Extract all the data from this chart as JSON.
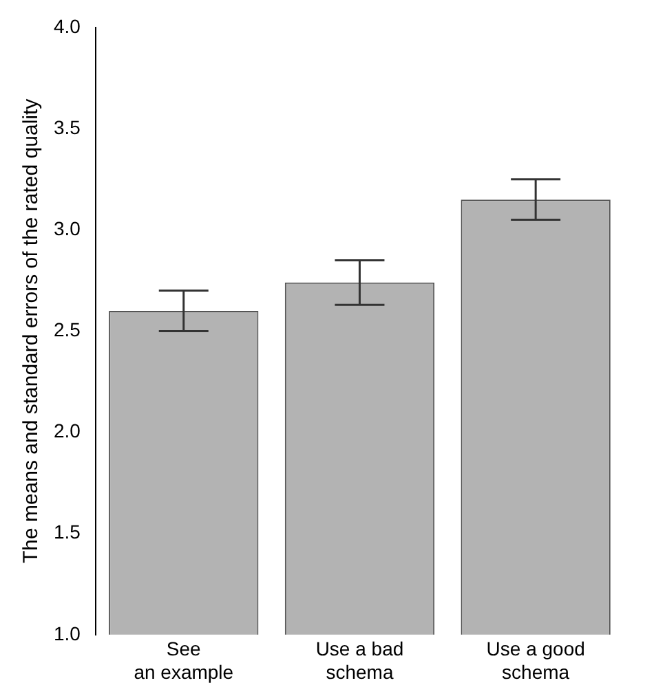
{
  "chart_data": {
    "type": "bar",
    "ylabel": "The means and standard errors of the rated quality",
    "categories": [
      "See\nan example",
      "Use a bad\nschema",
      "Use a good\nschema"
    ],
    "values": [
      2.6,
      2.74,
      3.15
    ],
    "errors": [
      0.1,
      0.11,
      0.1
    ],
    "color": "#b3b3b3",
    "ylim": [
      1.0,
      4.0
    ],
    "yticks": [
      {
        "value": 1.0,
        "label": "1.0"
      },
      {
        "value": 1.5,
        "label": "1.5"
      },
      {
        "value": 2.0,
        "label": "2.0"
      },
      {
        "value": 2.5,
        "label": "2.5"
      },
      {
        "value": 3.0,
        "label": "3.0"
      },
      {
        "value": 3.5,
        "label": "3.5"
      },
      {
        "value": 4.0,
        "label": "4.0"
      }
    ],
    "grid": false,
    "legend": false
  }
}
